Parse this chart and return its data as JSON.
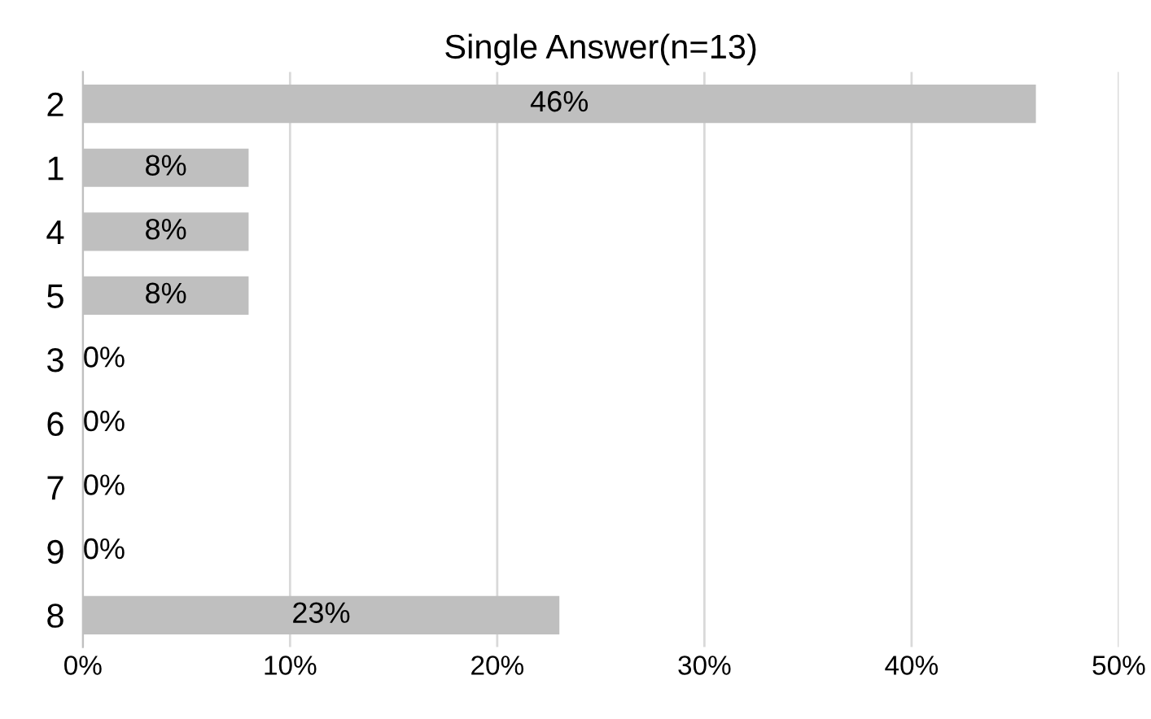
{
  "chart_data": {
    "type": "bar",
    "orientation": "horizontal",
    "title": "Single Answer(n=13)",
    "categories": [
      "2",
      "1",
      "4",
      "5",
      "3",
      "6",
      "7",
      "9",
      "8"
    ],
    "values": [
      46,
      8,
      8,
      8,
      0,
      0,
      0,
      0,
      23
    ],
    "value_labels": [
      "46%",
      "8%",
      "8%",
      "8%",
      "0%",
      "0%",
      "0%",
      "0%",
      "23%"
    ],
    "color": "#bfbfbf",
    "xlim": [
      0,
      50
    ],
    "xticks": [
      {
        "value": 0,
        "label": "0%"
      },
      {
        "value": 10,
        "label": "10%"
      },
      {
        "value": 20,
        "label": "20%"
      },
      {
        "value": 30,
        "label": "30%"
      },
      {
        "value": 40,
        "label": "40%"
      },
      {
        "value": 50,
        "label": "50%"
      }
    ],
    "grid": "x",
    "legend": false
  }
}
